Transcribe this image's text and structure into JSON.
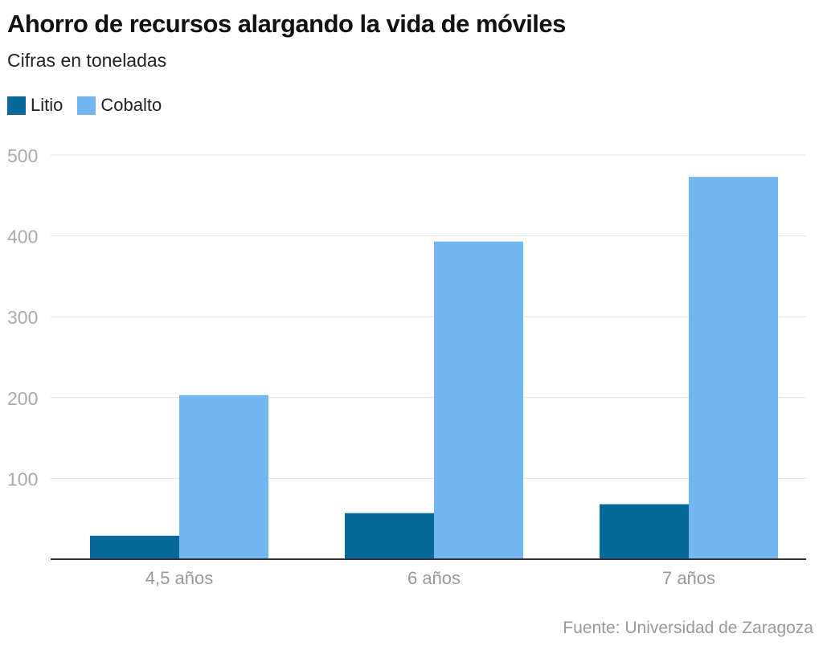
{
  "chart_data": {
    "type": "bar",
    "title": "Ahorro de recursos alargando la vida de móviles",
    "subtitle": "Cifras en toneladas",
    "categories": [
      "4,5 años",
      "6 años",
      "7 años"
    ],
    "series": [
      {
        "name": "Litio",
        "color": "#06699b",
        "values": [
          29,
          57,
          68
        ]
      },
      {
        "name": "Cobalto",
        "color": "#72b7f1",
        "values": [
          203,
          393,
          473
        ]
      }
    ],
    "yticks": [
      100,
      200,
      300,
      400,
      500
    ],
    "ylim": [
      0,
      500
    ],
    "grid": true,
    "legend": "top-left",
    "source": "Fuente: Universidad de Zaragoza"
  }
}
